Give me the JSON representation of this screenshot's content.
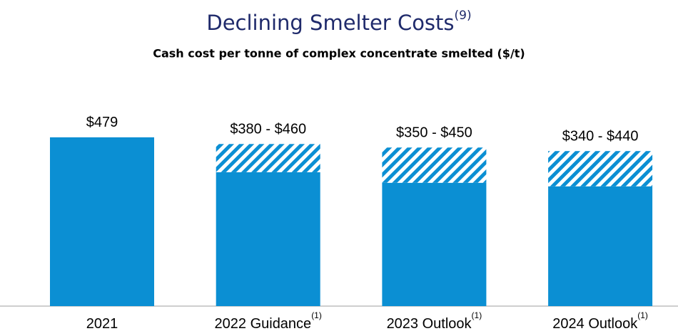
{
  "chart_data": {
    "type": "bar",
    "title": "Declining Smelter Costs",
    "title_note": "(9)",
    "subtitle": "Cash cost per tonne of complex concentrate smelted ($/t)",
    "categories": [
      "2021",
      "2022 Guidance",
      "2023 Outlook",
      "2024 Outlook"
    ],
    "category_notes": [
      null,
      "(1)",
      "(1)",
      "(1)"
    ],
    "stacked": true,
    "series": [
      {
        "color": "#0b8fd3",
        "values": [
          479,
          380,
          350,
          340
        ]
      },
      {
        "color": "#0b8fd3",
        "pattern": "hatch",
        "values": [
          null,
          80,
          100,
          100
        ]
      }
    ],
    "value_labels": [
      "$479",
      "$380 - $460",
      "$350 - $450",
      "$340 - $440"
    ],
    "ylim": [
      0,
      600
    ]
  }
}
